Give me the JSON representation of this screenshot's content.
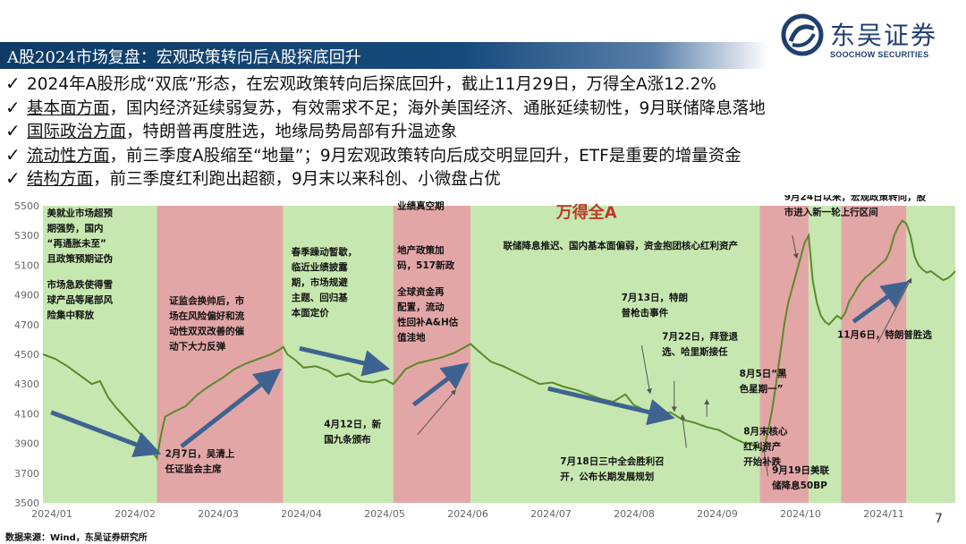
{
  "header": {
    "title": "A股2024市场复盘：宏观政策转向后A股探底回升",
    "logo_cn": "东吴证券",
    "logo_en": "SOOCHOW SECURITIES"
  },
  "bullets": [
    {
      "head": "",
      "tail": "2024年A股形成“双底”形态，在宏观政策转向后探底回升，截止11月29日，万得全A涨12.2%"
    },
    {
      "head": "基本面方面",
      "tail": "，国内经济延续弱复苏，有效需求不足；海外美国经济、通胀延续韧性，9月联储降息落地"
    },
    {
      "head": "国际政治方面",
      "tail": "，特朗普再度胜选，地缘局势局部有升温迹象"
    },
    {
      "head": "流动性方面",
      "tail": "，前三季度A股缩至“地量”；9月宏观政策转向后成交明显回升，ETF是重要的增量资金"
    },
    {
      "head": "结构方面",
      "tail": "，前三季度红利跑出超额，9月末以来科创、小微盘占优"
    }
  ],
  "chart_data": {
    "type": "line",
    "title": "万得全A",
    "x_tick_labels": [
      "2024/01",
      "2024/02",
      "2024/03",
      "2024/04",
      "2024/05",
      "2024/06",
      "2024/07",
      "2024/08",
      "2024/09",
      "2024/10",
      "2024/11"
    ],
    "y_ticks": [
      3500,
      3700,
      3900,
      4100,
      4300,
      4500,
      4700,
      4900,
      5100,
      5300,
      5500
    ],
    "ylim": [
      3500,
      5500
    ],
    "x_unit": "trading days since 2024-01-02",
    "xlim": [
      0,
      224
    ],
    "series": [
      {
        "name": "万得全A",
        "color": "#5a8a2a",
        "points": [
          [
            0,
            4500
          ],
          [
            3,
            4470
          ],
          [
            6,
            4420
          ],
          [
            9,
            4360
          ],
          [
            12,
            4300
          ],
          [
            14,
            4320
          ],
          [
            16,
            4210
          ],
          [
            18,
            4140
          ],
          [
            20,
            4080
          ],
          [
            22,
            4020
          ],
          [
            24,
            3960
          ],
          [
            26,
            3880
          ],
          [
            27,
            3840
          ],
          [
            28,
            3800
          ],
          [
            29,
            3960
          ],
          [
            30,
            4080
          ],
          [
            32,
            4110
          ],
          [
            35,
            4150
          ],
          [
            38,
            4230
          ],
          [
            41,
            4290
          ],
          [
            44,
            4340
          ],
          [
            47,
            4400
          ],
          [
            50,
            4440
          ],
          [
            53,
            4470
          ],
          [
            56,
            4500
          ],
          [
            58,
            4530
          ],
          [
            59,
            4550
          ],
          [
            60,
            4500
          ],
          [
            62,
            4460
          ],
          [
            64,
            4410
          ],
          [
            67,
            4420
          ],
          [
            70,
            4390
          ],
          [
            72,
            4350
          ],
          [
            75,
            4370
          ],
          [
            78,
            4320
          ],
          [
            81,
            4310
          ],
          [
            84,
            4330
          ],
          [
            86,
            4300
          ],
          [
            87,
            4330
          ],
          [
            89,
            4400
          ],
          [
            92,
            4440
          ],
          [
            95,
            4460
          ],
          [
            98,
            4480
          ],
          [
            101,
            4510
          ],
          [
            103,
            4540
          ],
          [
            105,
            4570
          ],
          [
            107,
            4520
          ],
          [
            110,
            4450
          ],
          [
            113,
            4420
          ],
          [
            116,
            4380
          ],
          [
            119,
            4340
          ],
          [
            122,
            4300
          ],
          [
            125,
            4310
          ],
          [
            128,
            4280
          ],
          [
            131,
            4260
          ],
          [
            134,
            4230
          ],
          [
            137,
            4200
          ],
          [
            140,
            4180
          ],
          [
            143,
            4230
          ],
          [
            145,
            4160
          ],
          [
            148,
            4120
          ],
          [
            151,
            4090
          ],
          [
            154,
            4110
          ],
          [
            157,
            4060
          ],
          [
            160,
            4040
          ],
          [
            163,
            4010
          ],
          [
            166,
            3990
          ],
          [
            168,
            3960
          ],
          [
            170,
            3930
          ],
          [
            172,
            3905
          ],
          [
            174,
            3890
          ],
          [
            176,
            3870
          ],
          [
            177,
            3860
          ],
          [
            178,
            3980
          ],
          [
            179,
            4120
          ],
          [
            180,
            4300
          ],
          [
            181,
            4500
          ],
          [
            182,
            4700
          ],
          [
            183,
            4850
          ],
          [
            184,
            4950
          ],
          [
            185,
            5050
          ],
          [
            186,
            5150
          ],
          [
            187,
            5250
          ],
          [
            188,
            5300
          ],
          [
            189,
            5000
          ],
          [
            190,
            4850
          ],
          [
            191,
            4760
          ],
          [
            192,
            4720
          ],
          [
            193,
            4700
          ],
          [
            194,
            4730
          ],
          [
            195,
            4760
          ],
          [
            196,
            4740
          ],
          [
            197,
            4780
          ],
          [
            198,
            4860
          ],
          [
            199,
            4900
          ],
          [
            200,
            4950
          ],
          [
            201,
            4990
          ],
          [
            202,
            5020
          ],
          [
            203,
            5040
          ],
          [
            205,
            5090
          ],
          [
            207,
            5140
          ],
          [
            208,
            5200
          ],
          [
            209,
            5300
          ],
          [
            210,
            5360
          ],
          [
            211,
            5400
          ],
          [
            212,
            5380
          ],
          [
            213,
            5300
          ],
          [
            214,
            5160
          ],
          [
            215,
            5100
          ],
          [
            216,
            5070
          ],
          [
            217,
            5050
          ],
          [
            218,
            5060
          ],
          [
            219,
            5040
          ],
          [
            220,
            5020
          ],
          [
            221,
            5000
          ],
          [
            222,
            5010
          ],
          [
            223,
            5030
          ],
          [
            224,
            5060
          ]
        ]
      }
    ],
    "shaded_regions": [
      {
        "from": 0,
        "to": 28,
        "color": "#c6e8b0",
        "phase": "down"
      },
      {
        "from": 28,
        "to": 59,
        "color": "#e3a6a6",
        "phase": "up"
      },
      {
        "from": 59,
        "to": 86,
        "color": "#c6e8b0",
        "phase": "down"
      },
      {
        "from": 86,
        "to": 105,
        "color": "#e3a6a6",
        "phase": "up"
      },
      {
        "from": 105,
        "to": 176,
        "color": "#c6e8b0",
        "phase": "down"
      },
      {
        "from": 176,
        "to": 188,
        "color": "#e3a6a6",
        "phase": "up"
      },
      {
        "from": 188,
        "to": 196,
        "color": "#c6e8b0",
        "phase": "down"
      },
      {
        "from": 196,
        "to": 212,
        "color": "#e3a6a6",
        "phase": "up"
      },
      {
        "from": 212,
        "to": 224,
        "color": "#c6e8b0",
        "phase": "down"
      }
    ],
    "annotations": [
      {
        "id": "a1",
        "lines": [
          "美就业市场超预",
          "期强势，国内",
          "“再通胀未至”",
          "且政策预期证伪"
        ]
      },
      {
        "id": "a2",
        "lines": [
          "市场急跌使得雪",
          "球产品等尾部风",
          "险集中释放"
        ]
      },
      {
        "id": "a3",
        "lines": [
          "证监会换帅后，市",
          "场在风险偏好和流",
          "动性双双改善的催",
          "动下大力反弹"
        ]
      },
      {
        "id": "a4",
        "lines": [
          "2月7日，吴清上",
          "任证监会主席"
        ]
      },
      {
        "id": "a5",
        "lines": [
          "春季躁动暂歇，",
          "临近业绩披露",
          "期，市场规避",
          "主题、回归基",
          "本面定价"
        ]
      },
      {
        "id": "a6",
        "lines": [
          "4月12日，新",
          "国九条颁布"
        ]
      },
      {
        "id": "a7",
        "lines": [
          "业绩真空期"
        ]
      },
      {
        "id": "a8",
        "lines": [
          "地产政策加",
          "码，517新政"
        ]
      },
      {
        "id": "a9",
        "lines": [
          "全球资金再",
          "配置，流动",
          "性回补A&H估",
          "值洼地"
        ]
      },
      {
        "id": "a10",
        "lines": [
          "联储降息推迟、国内基本面偏弱，资金抱团核心红利资产"
        ]
      },
      {
        "id": "a11",
        "lines": [
          "7月13日，特朗",
          "普枪击事件"
        ]
      },
      {
        "id": "a12",
        "lines": [
          "7月22日，拜登退",
          "选、哈里斯接任"
        ]
      },
      {
        "id": "a13",
        "lines": [
          "8月5日“黑",
          "色星期一”"
        ]
      },
      {
        "id": "a14",
        "lines": [
          "7月18日三中全会胜利召",
          "开，公布长期发展规划"
        ]
      },
      {
        "id": "a15",
        "lines": [
          "8月末核心",
          "红利资产",
          "开始补跌"
        ]
      },
      {
        "id": "a16",
        "lines": [
          "9月24日以来，宏观政策转向，股",
          "市进入新一轮上行区间"
        ]
      },
      {
        "id": "a17",
        "lines": [
          "11月6日，特朗普胜选"
        ]
      },
      {
        "id": "a18",
        "lines": [
          "9月19日美联",
          "储降息50BP"
        ]
      }
    ]
  },
  "footer": {
    "source": "数据来源：Wind，东吴证券研究所"
  },
  "page_number": "7"
}
